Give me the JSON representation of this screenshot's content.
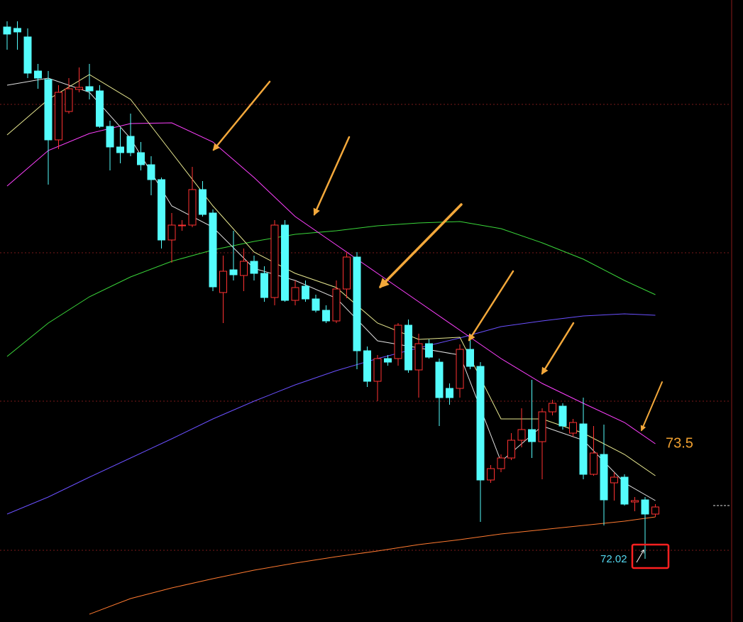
{
  "chart_data": {
    "type": "candlestick",
    "ylim": [
      71.13,
      79.89
    ],
    "gridlines": [
      78.42,
      76.33,
      74.24,
      72.14
    ],
    "up_color": "#ff3232",
    "down_color": "#54fcfc",
    "open": [
      79.51,
      79.49,
      79.37,
      78.89,
      78.77,
      77.92,
      78.32,
      78.63,
      78.67,
      78.61,
      78.11,
      77.82,
      77.97,
      77.74,
      77.57,
      77.36,
      76.51,
      76.71,
      76.72,
      77.22,
      76.89,
      75.77,
      76.09,
      76.01,
      76.21,
      76.04,
      75.7,
      76.72,
      75.66,
      75.86,
      75.68,
      75.52,
      75.37,
      75.82,
      76.27,
      74.95,
      74.52,
      74.84,
      74.84,
      75.31,
      74.68,
      75.05,
      74.79,
      74.42,
      74.42,
      74.97,
      74.73,
      73.13,
      73.29,
      73.44,
      73.69,
      73.84,
      73.67,
      74.09,
      74.17,
      73.79,
      73.92,
      73.21,
      73.49,
      73.09,
      73.17,
      72.82,
      72.85,
      72.65
    ],
    "high": [
      79.59,
      79.59,
      79.49,
      78.99,
      78.89,
      78.69,
      78.79,
      78.94,
      78.99,
      78.69,
      78.19,
      78.09,
      78.29,
      77.89,
      77.69,
      77.39,
      76.89,
      76.79,
      77.54,
      77.34,
      76.94,
      76.29,
      76.64,
      76.39,
      76.29,
      76.14,
      76.79,
      76.79,
      75.94,
      75.94,
      75.74,
      75.59,
      75.94,
      76.34,
      76.34,
      75.01,
      74.89,
      74.89,
      75.34,
      75.39,
      75.19,
      75.11,
      74.84,
      74.49,
      75.04,
      75.19,
      74.79,
      73.34,
      73.49,
      73.79,
      74.14,
      74.54,
      74.14,
      74.26,
      74.21,
      73.99,
      74.29,
      73.89,
      73.91,
      73.24,
      73.21,
      72.89,
      72.89,
      72.79
    ],
    "low": [
      79.19,
      79.19,
      78.79,
      78.64,
      77.29,
      77.79,
      78.29,
      78.59,
      78.49,
      78.09,
      77.49,
      77.59,
      77.69,
      77.49,
      77.14,
      76.39,
      76.19,
      76.64,
      76.69,
      76.84,
      75.79,
      75.34,
      75.94,
      75.79,
      75.94,
      75.64,
      75.59,
      75.64,
      75.59,
      75.64,
      75.49,
      75.34,
      75.34,
      75.69,
      74.69,
      74.44,
      74.24,
      74.74,
      74.74,
      74.64,
      74.29,
      74.84,
      73.89,
      74.19,
      74.29,
      74.69,
      72.54,
      73.09,
      73.24,
      73.41,
      73.59,
      73.44,
      73.14,
      74.04,
      73.84,
      73.74,
      73.14,
      73.19,
      72.49,
      72.84,
      72.77,
      72.69,
      72.02,
      72.61
    ],
    "close": [
      79.41,
      79.44,
      78.86,
      78.79,
      77.92,
      78.59,
      78.64,
      78.66,
      78.61,
      78.11,
      77.82,
      77.74,
      77.74,
      77.57,
      77.36,
      76.51,
      76.72,
      76.72,
      77.22,
      76.87,
      75.85,
      76.07,
      76.02,
      76.21,
      76.04,
      75.7,
      76.72,
      75.66,
      75.84,
      75.68,
      75.52,
      75.37,
      75.82,
      76.27,
      74.95,
      74.52,
      74.84,
      74.79,
      75.31,
      74.68,
      75.05,
      74.86,
      74.29,
      74.29,
      74.97,
      74.73,
      73.13,
      73.29,
      73.44,
      73.69,
      73.84,
      73.67,
      74.09,
      74.21,
      73.89,
      73.94,
      73.21,
      73.51,
      72.85,
      73.17,
      72.79,
      72.84,
      72.65,
      72.75
    ],
    "lines": [
      {
        "color": "#ff7a30",
        "x": [
          8,
          12,
          16,
          20,
          24,
          28,
          32,
          36,
          40,
          44,
          48,
          52,
          56,
          60,
          63
        ],
        "values": [
          71.24,
          71.46,
          71.61,
          71.74,
          71.86,
          71.96,
          72.05,
          72.13,
          72.22,
          72.29,
          72.37,
          72.43,
          72.49,
          72.55,
          72.61
        ]
      },
      {
        "color": "#6a50ff",
        "x": [
          0,
          4,
          8,
          12,
          16,
          20,
          24,
          28,
          32,
          36,
          40,
          44,
          48,
          52,
          56,
          60,
          63
        ],
        "values": [
          72.65,
          72.89,
          73.17,
          73.44,
          73.71,
          73.99,
          74.24,
          74.47,
          74.67,
          74.84,
          74.99,
          75.13,
          75.29,
          75.37,
          75.44,
          75.47,
          75.45
        ]
      },
      {
        "color": "#3ad63a",
        "x": [
          0,
          4,
          8,
          12,
          16,
          20,
          24,
          28,
          32,
          36,
          40,
          44,
          48,
          52,
          56,
          60,
          63
        ],
        "values": [
          74.87,
          75.34,
          75.71,
          75.99,
          76.21,
          76.37,
          76.49,
          76.59,
          76.64,
          76.71,
          76.75,
          76.77,
          76.67,
          76.47,
          76.24,
          75.94,
          75.74
        ]
      },
      {
        "color": "#ff40ff",
        "x": [
          0,
          4,
          8,
          12,
          16,
          20,
          24,
          28,
          32,
          36,
          40,
          44,
          48,
          52,
          56,
          60,
          63
        ],
        "values": [
          77.27,
          77.77,
          78.01,
          78.15,
          78.16,
          77.89,
          77.39,
          76.84,
          76.44,
          76.04,
          75.64,
          75.24,
          74.84,
          74.49,
          74.21,
          73.94,
          73.64
        ]
      },
      {
        "color": "#e8e890",
        "x": [
          0,
          4,
          8,
          12,
          16,
          20,
          24,
          28,
          32,
          36,
          40,
          44,
          48,
          52,
          56,
          60,
          63
        ],
        "values": [
          77.99,
          78.49,
          78.84,
          78.49,
          77.74,
          76.99,
          76.34,
          76.04,
          75.84,
          75.34,
          75.11,
          75.14,
          73.99,
          73.99,
          73.79,
          73.49,
          73.19
        ]
      },
      {
        "color": "#e0e0e0",
        "x": [
          0,
          4,
          8,
          12,
          16,
          20,
          24,
          28,
          32,
          36,
          40,
          44,
          48,
          52,
          56,
          60,
          63
        ],
        "values": [
          78.69,
          78.79,
          78.59,
          77.94,
          76.99,
          76.69,
          76.11,
          75.94,
          75.69,
          75.09,
          74.99,
          74.89,
          73.39,
          73.89,
          73.69,
          73.09,
          72.84
        ]
      }
    ],
    "annotations": [
      {
        "text": "73.5",
        "color": "#f0a030"
      },
      {
        "text": "72.02",
        "color": "#54d8f0"
      }
    ]
  }
}
